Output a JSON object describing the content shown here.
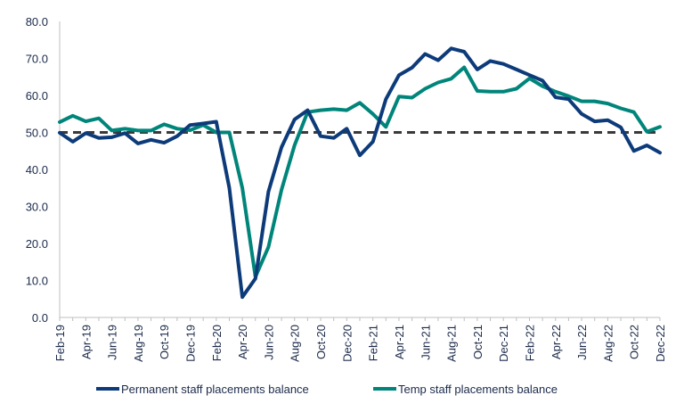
{
  "chart_data": {
    "type": "line",
    "title": "",
    "xlabel": "",
    "ylabel": "",
    "ylim": [
      0,
      80
    ],
    "yticks": [
      "0.0",
      "10.0",
      "20.0",
      "30.0",
      "40.0",
      "50.0",
      "60.0",
      "70.0",
      "80.0"
    ],
    "grid": false,
    "legend_position": "bottom",
    "x": [
      "Feb-19",
      "Mar-19",
      "Apr-19",
      "May-19",
      "Jun-19",
      "Jul-19",
      "Aug-19",
      "Sep-19",
      "Oct-19",
      "Nov-19",
      "Dec-19",
      "Jan-20",
      "Feb-20",
      "Mar-20",
      "Apr-20",
      "May-20",
      "Jun-20",
      "Jul-20",
      "Aug-20",
      "Sep-20",
      "Oct-20",
      "Nov-20",
      "Dec-20",
      "Jan-21",
      "Feb-21",
      "Mar-21",
      "Apr-21",
      "May-21",
      "Jun-21",
      "Jul-21",
      "Aug-21",
      "Sep-21",
      "Oct-21",
      "Nov-21",
      "Dec-21",
      "Jan-22",
      "Feb-22",
      "Mar-22",
      "Apr-22",
      "May-22",
      "Jun-22",
      "Jul-22",
      "Aug-22",
      "Sep-22",
      "Oct-22",
      "Nov-22",
      "Dec-22"
    ],
    "xtick_labels": [
      "Feb-19",
      "Apr-19",
      "Jun-19",
      "Aug-19",
      "Oct-19",
      "Dec-19",
      "Feb-20",
      "Apr-20",
      "Jun-20",
      "Aug-20",
      "Oct-20",
      "Dec-20",
      "Feb-21",
      "Apr-21",
      "Jun-21",
      "Aug-21",
      "Oct-21",
      "Dec-21",
      "Feb-22",
      "Apr-22",
      "Jun-22",
      "Aug-22",
      "Oct-22",
      "Dec-22"
    ],
    "reference_line": {
      "value": 50,
      "style": "dashed",
      "color": "#3a3a3a"
    },
    "series": [
      {
        "name": "Permanent staff placements balance",
        "color": "#0d3b7a",
        "values": [
          49.9,
          47.5,
          49.8,
          48.5,
          48.7,
          49.8,
          47.0,
          48.0,
          47.2,
          49.0,
          52.0,
          52.4,
          52.9,
          35.0,
          5.5,
          10.5,
          34.0,
          46.0,
          53.5,
          56.0,
          49.0,
          48.5,
          51.0,
          43.8,
          47.5,
          59.0,
          65.5,
          67.5,
          71.2,
          69.5,
          72.7,
          71.8,
          67.0,
          69.3,
          68.5,
          67.0,
          65.5,
          64.0,
          59.5,
          59.0,
          55.0,
          53.0,
          53.3,
          51.4,
          45.0,
          46.5,
          44.5
        ]
      },
      {
        "name": "Temp staff placements balance",
        "color": "#00857a",
        "values": [
          52.8,
          54.5,
          53.0,
          53.8,
          50.5,
          51.0,
          50.5,
          50.5,
          52.2,
          51.0,
          50.6,
          52.0,
          50.0,
          50.0,
          35.0,
          11.0,
          19.0,
          34.5,
          46.5,
          55.5,
          56.0,
          56.3,
          56.0,
          58.0,
          55.0,
          51.5,
          59.7,
          59.4,
          61.8,
          63.5,
          64.5,
          67.6,
          61.2,
          61.0,
          61.0,
          61.8,
          64.6,
          62.5,
          61.0,
          59.8,
          58.4,
          58.4,
          57.8,
          56.5,
          55.5,
          50.2,
          51.5
        ]
      }
    ]
  }
}
